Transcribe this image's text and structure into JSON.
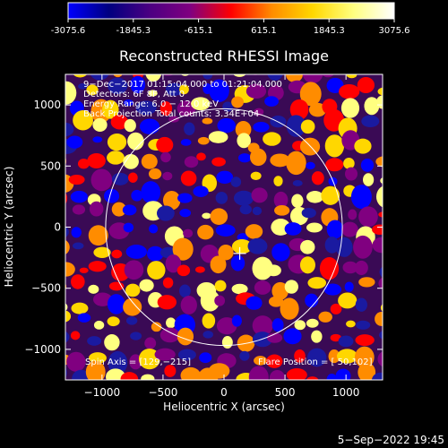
{
  "colorbar": {
    "min": -3075.6,
    "max": 3075.6,
    "tick_labels": [
      "-3075.6",
      "-1845.3",
      "-615.1",
      "615.1",
      "1845.3",
      "3075.6"
    ],
    "stops": [
      "#0000ff",
      "#000080",
      "#4b0082",
      "#800080",
      "#ff0000",
      "#ff8c00",
      "#ffd700",
      "#ffff80",
      "#ffffff"
    ]
  },
  "chart_data": {
    "type": "heatmap",
    "title": "Reconstructed RHESSI Image",
    "xlabel": "Heliocentric X (arcsec)",
    "ylabel": "Heliocentric Y (arcsec)",
    "xlim": [
      -1300,
      1300
    ],
    "ylim": [
      -1250,
      1250
    ],
    "xticks": [
      -1000,
      -500,
      0,
      500,
      1000
    ],
    "yticks": [
      -1000,
      -500,
      0,
      500,
      1000
    ],
    "xtick_labels": [
      "−1000",
      "−500",
      "0",
      "500",
      "1000"
    ],
    "ytick_labels": [
      "−1000",
      "−500",
      "0",
      "500",
      "1000"
    ],
    "solar_disk": {
      "center": [
        0,
        0
      ],
      "radius": 970
    },
    "flare_marker": [
      129,
      -215
    ],
    "annotations": [
      "9−Dec−2017 01:15:04.000 to 01:21:04.000",
      "Detectors: 6F 8F, Att 0",
      "Energy Range: 6.0 − 12.0 keV",
      "Back Projection    Total counts: 3.34E+04"
    ],
    "footer_left": "Spin Axis = [129,−215]",
    "footer_right": "Flare Position = [ 50,102]"
  },
  "timestamp": "5−Sep−2022 19:45"
}
